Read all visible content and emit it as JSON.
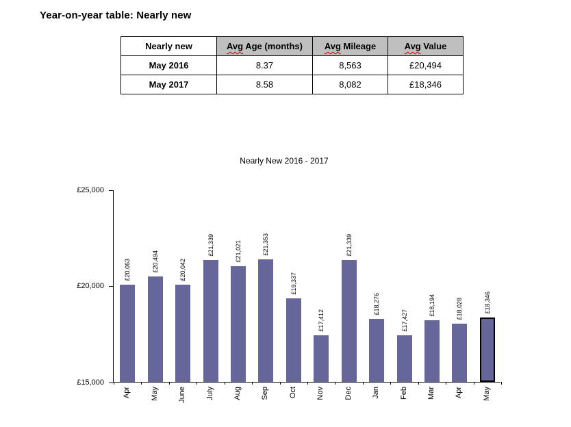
{
  "page": {
    "title": "Year-on-year table: Nearly new"
  },
  "table": {
    "header": {
      "col0": "Nearly new",
      "col1_prefix": "Avg",
      "col1_suffix": " Age (months)",
      "col2_prefix": "Avg",
      "col2_suffix": " Mileage",
      "col3_prefix": "Avg",
      "col3_suffix": " Value"
    },
    "rows": [
      {
        "label": "May 2016",
        "age": "8.37",
        "mileage": "8,563",
        "value": "£20,494"
      },
      {
        "label": "May 2017",
        "age": "8.58",
        "mileage": "8,082",
        "value": "£18,346"
      }
    ]
  },
  "chart_data": {
    "type": "bar",
    "title": "Nearly New 2016 - 2017",
    "categories": [
      "Apr",
      "May",
      "June",
      "July",
      "Aug",
      "Sep",
      "Oct",
      "Nov",
      "Dec",
      "Jan",
      "Feb",
      "Mar",
      "Apr",
      "May"
    ],
    "values": [
      20063,
      20494,
      20042,
      21339,
      21021,
      21353,
      19337,
      17412,
      21339,
      18276,
      17427,
      18194,
      18028,
      18346
    ],
    "value_labels": [
      "£20,063",
      "£20,494",
      "£20,042",
      "£21,339",
      "£21,021",
      "£21,353",
      "£19,337",
      "£17,412",
      "£21,339",
      "£18,276",
      "£17,427",
      "£18,194",
      "£18,028",
      "£18,346"
    ],
    "ylim": [
      15000,
      25000
    ],
    "yticks": [
      {
        "value": 15000,
        "label": "£15,000"
      },
      {
        "value": 20000,
        "label": "£20,000"
      },
      {
        "value": 25000,
        "label": "£25,000"
      }
    ],
    "xlabel": "",
    "ylabel": "",
    "grid": false,
    "legend": false,
    "bar_color": "#66669B",
    "highlight_index": 13,
    "highlight_border_color": "#000000"
  },
  "colors": {
    "table_header_bg": "#bfbfbf",
    "spellcheck_underline": "#cc0000",
    "axis": "#000000"
  }
}
